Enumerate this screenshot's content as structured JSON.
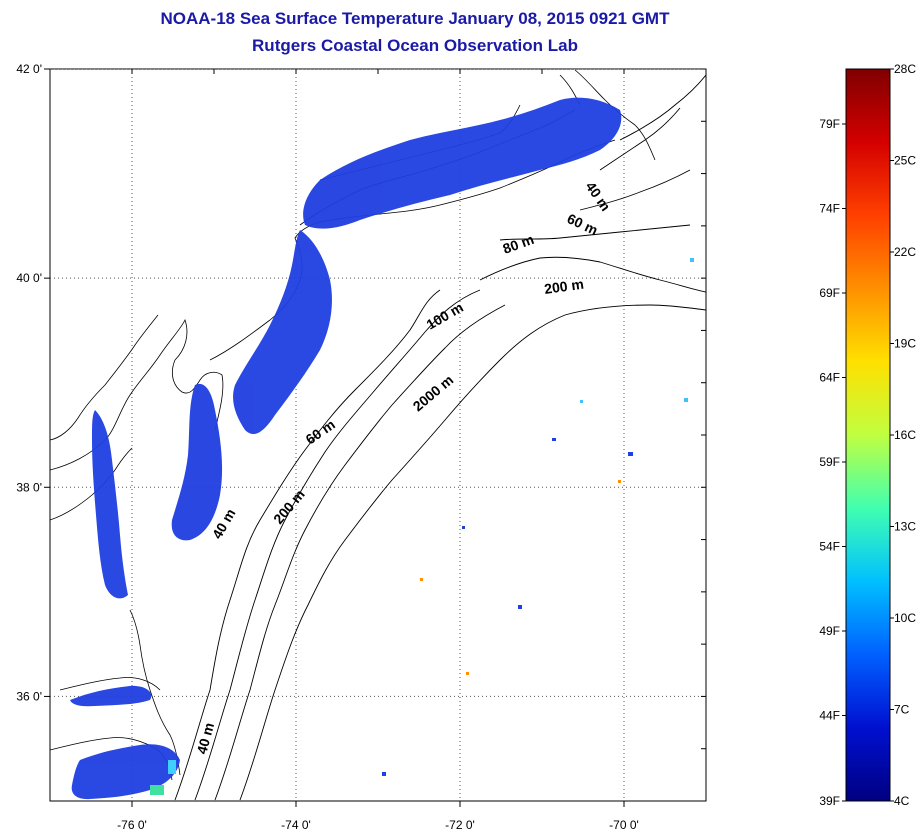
{
  "title": "NOAA-18 Sea Surface Temperature January 08, 2015 0921 GMT",
  "subtitle": "Rutgers Coastal Ocean Observation Lab",
  "map": {
    "lon_range": [
      -77.0,
      -69.0
    ],
    "lat_range": [
      35.0,
      42.0
    ],
    "lon_ticks": [
      {
        "value": -76,
        "label": "-76 0'"
      },
      {
        "value": -74,
        "label": "-74 0'"
      },
      {
        "value": -72,
        "label": "-72 0'"
      },
      {
        "value": -70,
        "label": "-70 0'"
      }
    ],
    "lat_ticks": [
      {
        "value": 42,
        "label": "42 0'"
      },
      {
        "value": 40,
        "label": "40 0'"
      },
      {
        "value": 38,
        "label": "38 0'"
      },
      {
        "value": 36,
        "label": "36 0'"
      }
    ],
    "grid": "dotted",
    "contour_labels": [
      "40 m",
      "60 m",
      "80 m",
      "200 m",
      "100 m",
      "2000 m",
      "60 m",
      "200 m",
      "40 m",
      "40 m"
    ],
    "land_color": "#ffffff",
    "sst_color": "#1f3fe0"
  },
  "colorbar": {
    "celsius_labels": [
      "28C",
      "25C",
      "22C",
      "19C",
      "16C",
      "13C",
      "10C",
      "7C",
      "4C"
    ],
    "fahrenheit_labels": [
      "79F",
      "74F",
      "69F",
      "64F",
      "59F",
      "54F",
      "49F",
      "44F",
      "39F"
    ],
    "colors": [
      "#800000",
      "#d40000",
      "#ff4000",
      "#ff9000",
      "#ffe000",
      "#c0ff40",
      "#40ffb0",
      "#00c0ff",
      "#0060ff",
      "#0010d0",
      "#000080"
    ]
  }
}
